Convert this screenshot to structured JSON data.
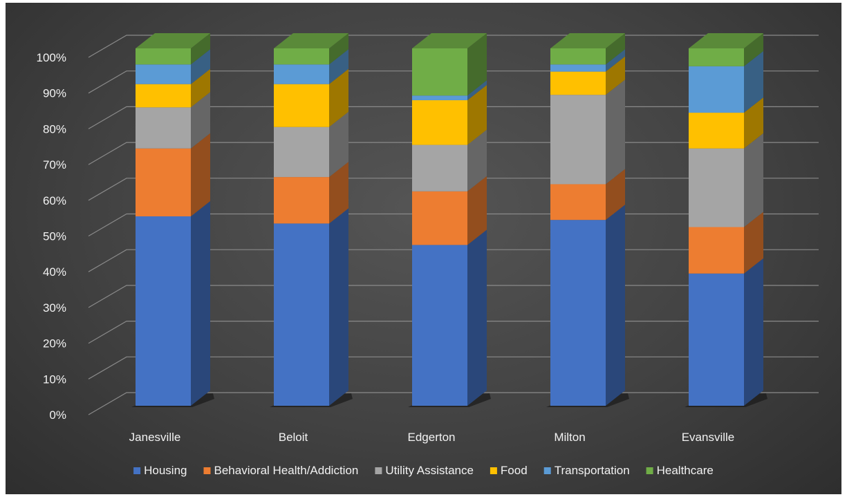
{
  "chart_data": {
    "type": "bar",
    "stacked": "percent",
    "three_d": true,
    "categories": [
      "Janesville",
      "Beloit",
      "Edgerton",
      "Milton",
      "Evansville"
    ],
    "series": [
      {
        "name": "Housing",
        "color": "#4472C4",
        "values": [
          53,
          51,
          45,
          52,
          37
        ]
      },
      {
        "name": "Behavioral Health/Addiction",
        "color": "#ED7D31",
        "values": [
          19,
          13,
          15,
          10,
          13
        ]
      },
      {
        "name": "Utility Assistance",
        "color": "#A5A5A5",
        "values": [
          11.5,
          14,
          13,
          25,
          22
        ]
      },
      {
        "name": "Food",
        "color": "#FFC000",
        "values": [
          6.5,
          12,
          12.5,
          6.5,
          10
        ]
      },
      {
        "name": "Transportation",
        "color": "#5B9BD5",
        "values": [
          5.5,
          5.5,
          1.3,
          2,
          13
        ]
      },
      {
        "name": "Healthcare",
        "color": "#70AD47",
        "values": [
          4.5,
          4.5,
          13.2,
          4.5,
          5
        ]
      }
    ],
    "y_ticks": [
      "0%",
      "10%",
      "20%",
      "30%",
      "40%",
      "50%",
      "60%",
      "70%",
      "80%",
      "90%",
      "100%"
    ],
    "ylim": [
      0,
      100
    ],
    "grid": true,
    "legend_position": "bottom",
    "title": "",
    "xlabel": "",
    "ylabel": ""
  }
}
